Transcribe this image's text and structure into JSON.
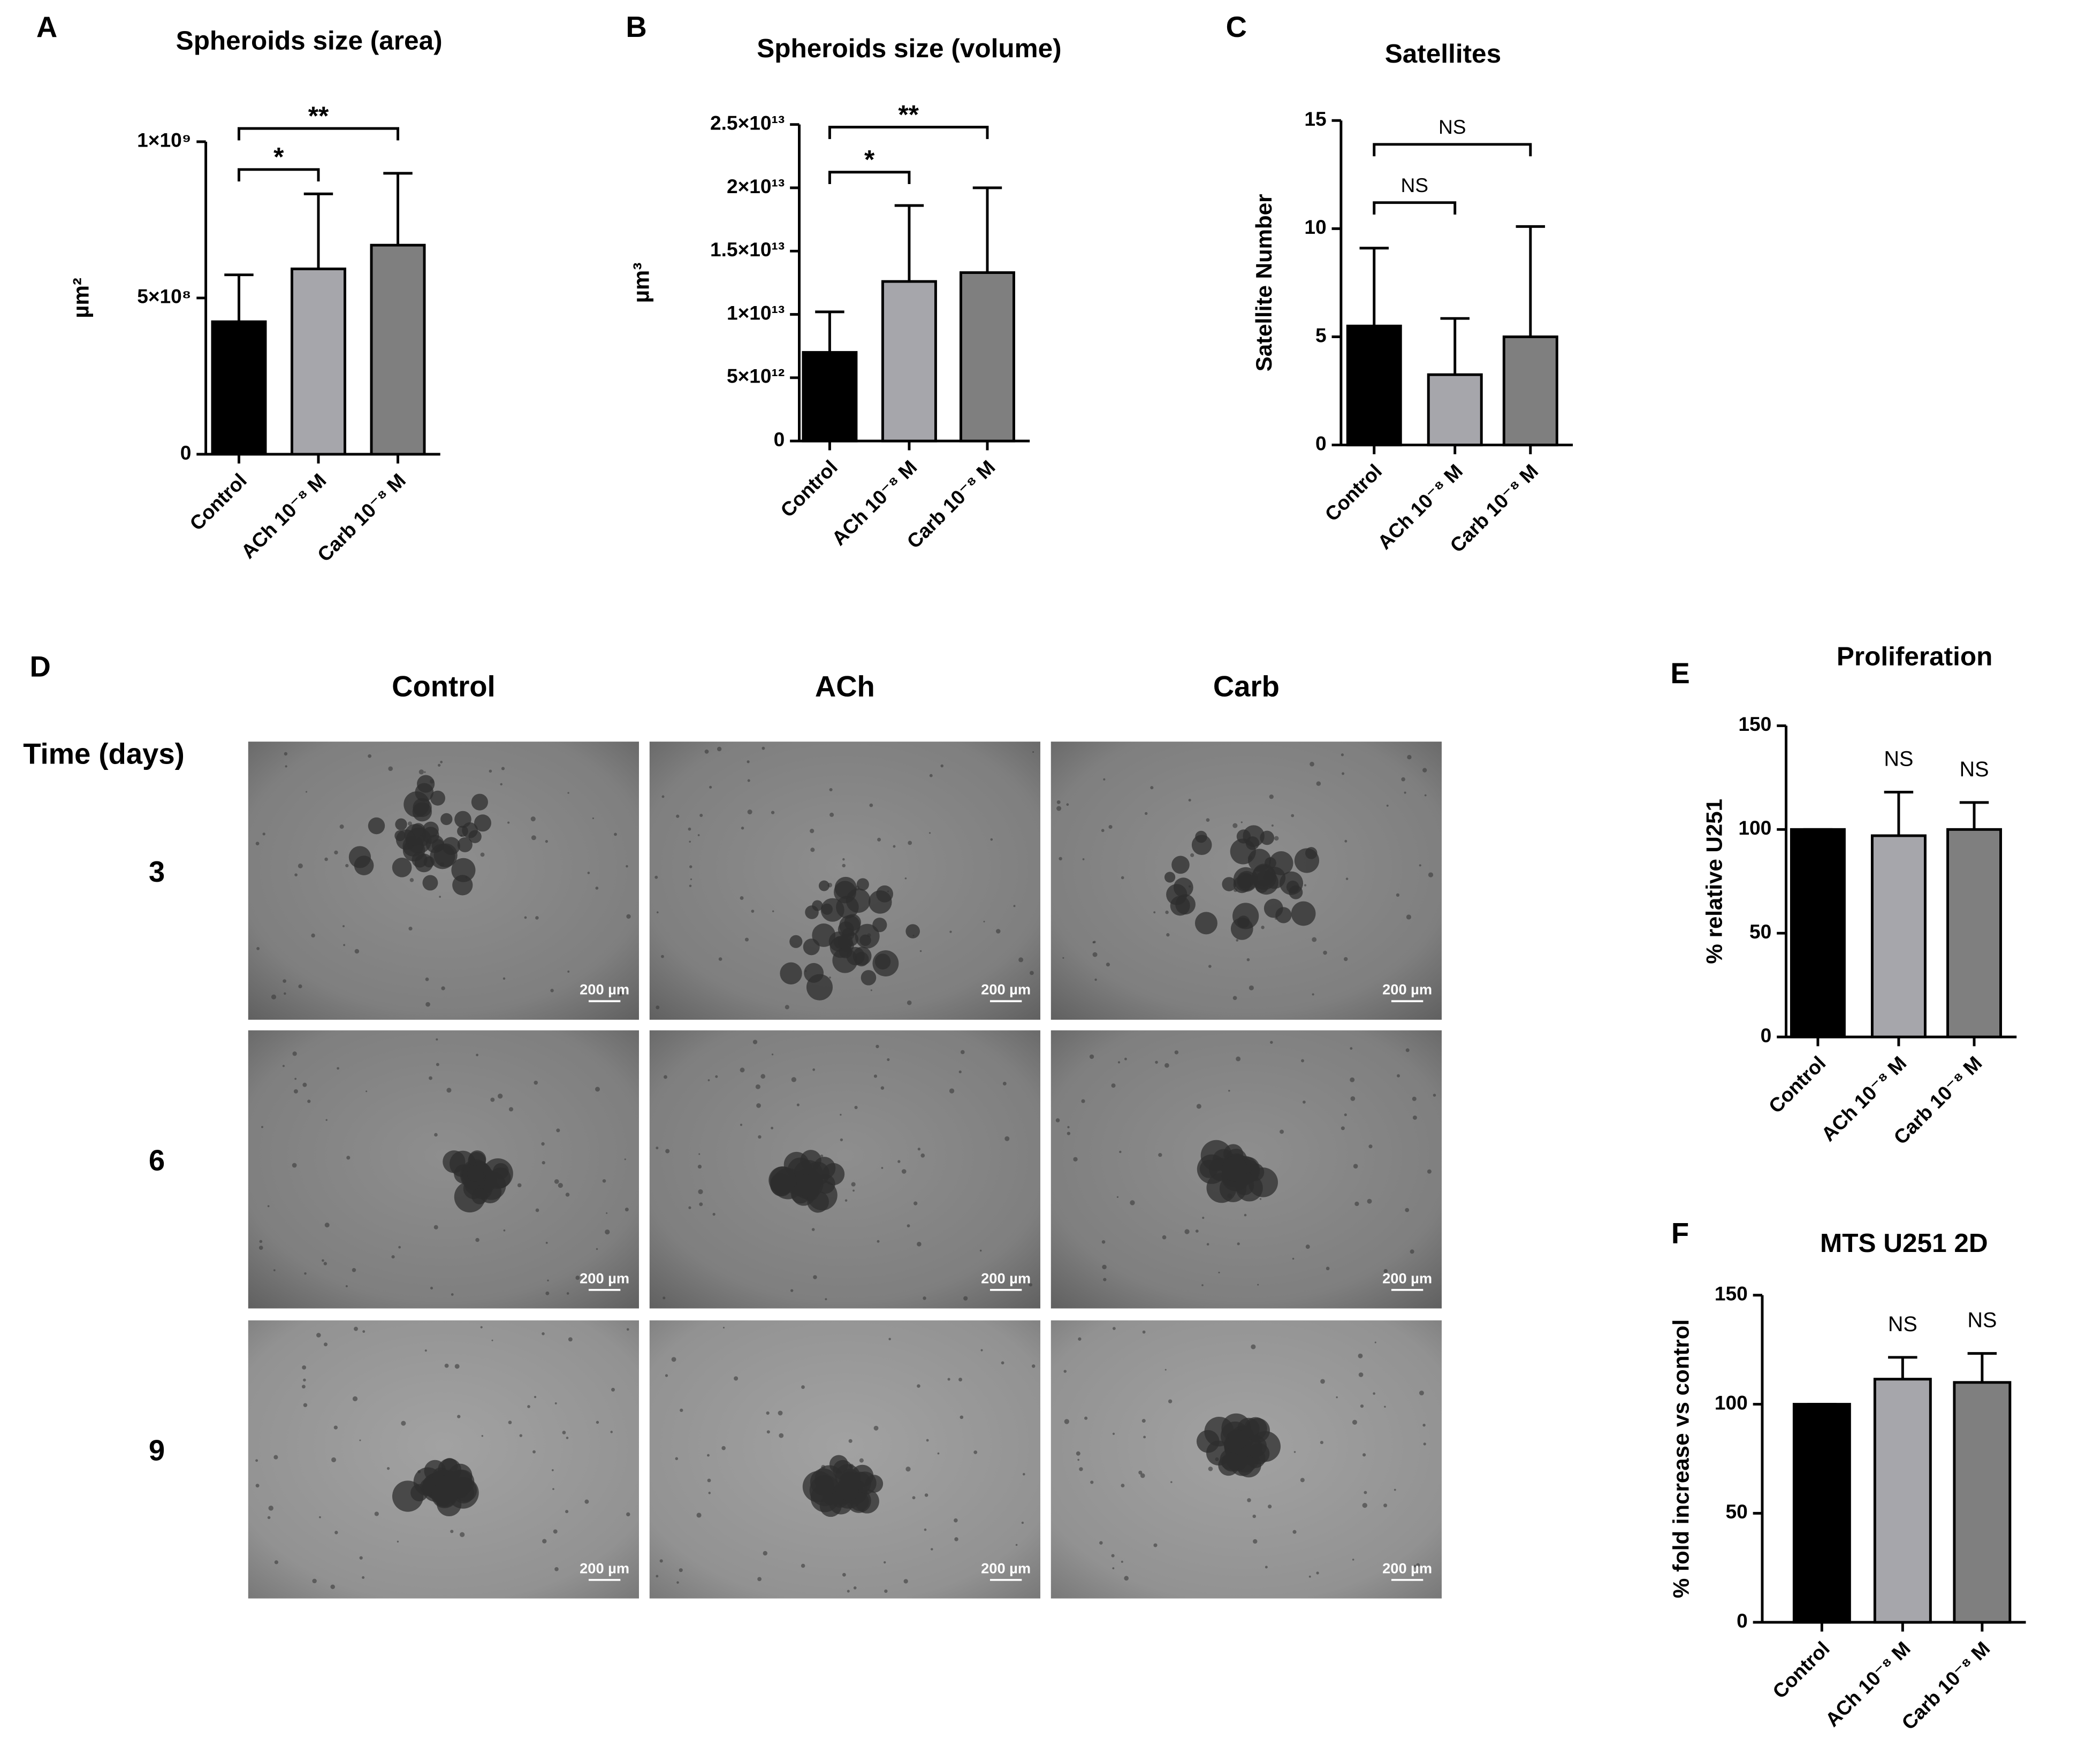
{
  "chart_data": [
    {
      "type": "bar",
      "label": "A",
      "title": "Spheroids size (area)",
      "ylabel": "µm²",
      "categories": [
        "Control",
        "ACh 10⁻⁸ M",
        "Carb 10⁻⁸ M"
      ],
      "values": [
        424000000,
        593000000,
        669000000
      ],
      "errors": [
        150000000,
        240000000,
        230000000
      ],
      "colors": [
        "#000000",
        "#a6a6ab",
        "#7f7f7f"
      ],
      "ylim": [
        0,
        1000000000
      ],
      "yticks": [
        0,
        {
          "value": 500000000,
          "label": "5×10⁸"
        },
        {
          "value": 1000000000,
          "label": "1×10⁹"
        }
      ],
      "comparisons": [
        {
          "pair": [
            0,
            1
          ],
          "label": "*"
        },
        {
          "pair": [
            0,
            2
          ],
          "label": "**"
        }
      ]
    },
    {
      "type": "bar",
      "label": "B",
      "title": "Spheroids size (volume)",
      "ylabel": "µm³",
      "categories": [
        "Control",
        "ACh 10⁻⁸ M",
        "Carb 10⁻⁸ M"
      ],
      "values": [
        7000000000000,
        12600000000000,
        13300000000000
      ],
      "errors": [
        3200000000000,
        6000000000000,
        6700000000000
      ],
      "colors": [
        "#000000",
        "#a6a6ab",
        "#7f7f7f"
      ],
      "ylim": [
        0,
        25000000000000
      ],
      "yticks": [
        0,
        {
          "value": 5000000000000,
          "label": "5×10¹²"
        },
        {
          "value": 10000000000000,
          "label": "1×10¹³"
        },
        {
          "value": 15000000000000,
          "label": "1.5×10¹³"
        },
        {
          "value": 20000000000000,
          "label": "2×10¹³"
        },
        {
          "value": 25000000000000,
          "label": "2.5×10¹³"
        }
      ],
      "comparisons": [
        {
          "pair": [
            0,
            1
          ],
          "label": "*"
        },
        {
          "pair": [
            0,
            2
          ],
          "label": "**"
        }
      ]
    },
    {
      "type": "bar",
      "label": "C",
      "title": "Satellites",
      "ylabel": "Satellite Number",
      "categories": [
        "Control",
        "ACh 10⁻⁸ M",
        "Carb 10⁻⁸ M"
      ],
      "values": [
        5.5,
        3.25,
        5.0
      ],
      "errors": [
        3.6,
        2.6,
        5.1
      ],
      "colors": [
        "#000000",
        "#a6a6ab",
        "#7f7f7f"
      ],
      "ylim": [
        0,
        15
      ],
      "yticks": [
        0,
        5,
        10,
        15
      ],
      "comparisons": [
        {
          "pair": [
            0,
            1
          ],
          "label": "NS"
        },
        {
          "pair": [
            0,
            2
          ],
          "label": "NS"
        }
      ]
    },
    {
      "type": "bar",
      "label": "E",
      "title": "Proliferation",
      "ylabel": "% relative U251",
      "categories": [
        "Control",
        "ACh 10⁻⁸ M",
        "Carb 10⁻⁸ M"
      ],
      "values": [
        100,
        97,
        100
      ],
      "errors": [
        0,
        21,
        13
      ],
      "colors": [
        "#000000",
        "#a6a6ab",
        "#7f7f7f"
      ],
      "ylim": [
        0,
        150
      ],
      "yticks": [
        0,
        50,
        100,
        150
      ],
      "annotations": [
        {
          "category": 1,
          "label": "NS"
        },
        {
          "category": 2,
          "label": "NS"
        }
      ]
    },
    {
      "type": "bar",
      "label": "F",
      "title": "MTS U251 2D",
      "ylabel": "% fold increase vs control",
      "categories": [
        "Control",
        "ACh 10⁻⁸ M",
        "Carb 10⁻⁸ M"
      ],
      "values": [
        100,
        111.5,
        110
      ],
      "errors": [
        0,
        10,
        13.3
      ],
      "colors": [
        "#000000",
        "#a6a6ab",
        "#7f7f7f"
      ],
      "ylim": [
        0,
        150
      ],
      "yticks": [
        0,
        50,
        100,
        150
      ],
      "annotations": [
        {
          "category": 1,
          "label": "NS"
        },
        {
          "category": 2,
          "label": "NS"
        }
      ]
    }
  ],
  "image_panel": {
    "label": "D",
    "row_header": "Time (days)",
    "columns": [
      "Control",
      "ACh",
      "Carb"
    ],
    "rows": [
      "3",
      "6",
      "9"
    ],
    "scale_bars": [
      [
        "200 µm",
        "200 µm",
        "200 µm"
      ],
      [
        "200 µm",
        "200 µm",
        "200 µm"
      ],
      [
        "200 µm",
        "200 µm",
        "200 µm"
      ]
    ]
  }
}
